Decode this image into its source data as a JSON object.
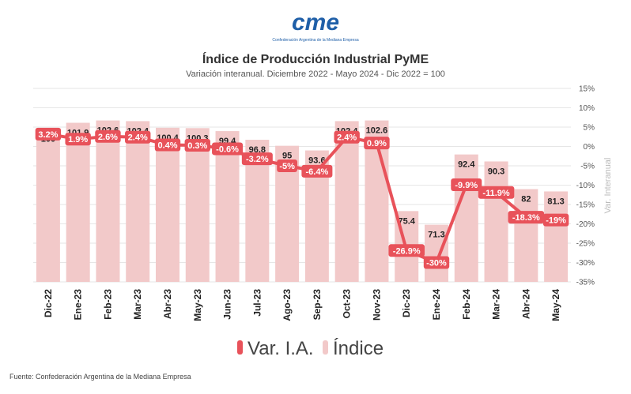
{
  "logo": {
    "text": "cme",
    "caption": "Confederación Argentina de la Mediana Empresa"
  },
  "source": "Fuente: Confederación Argentina de la Mediana Empresa",
  "colors": {
    "bar": "#f2c9c9",
    "line": "#e8525a",
    "logo": "#1f5fa8"
  },
  "chart_data": {
    "type": "bar",
    "title": "Índice de Producción Industrial PyME",
    "subtitle": "Variación interanual. Diciembre 2022 - Mayo 2024 - Dic 2022 = 100",
    "categories": [
      "Dic-22",
      "Ene-23",
      "Feb-23",
      "Mar-23",
      "Abr-23",
      "May-23",
      "Jun-23",
      "Jul-23",
      "Ago-23",
      "Sep-23",
      "Oct-23",
      "Nov-23",
      "Dic-23",
      "Ene-24",
      "Feb-24",
      "Mar-24",
      "Abr-24",
      "May-24"
    ],
    "series": [
      {
        "name": "Índice",
        "type": "bar",
        "values": [
          100,
          101.9,
          102.6,
          102.4,
          100.4,
          100.3,
          99.4,
          96.8,
          95,
          93.6,
          102.4,
          102.6,
          75.4,
          71.3,
          92.4,
          90.3,
          82,
          81.3
        ],
        "labels": [
          "100",
          "101.9",
          "102.6",
          "102.4",
          "100.4",
          "100.3",
          "99.4",
          "96.8",
          "95",
          "93.6",
          "102.4",
          "102.6",
          "75.4",
          "71.3",
          "92.4",
          "90.3",
          "82",
          "81.3"
        ]
      },
      {
        "name": "Var. I.A.",
        "type": "line",
        "axis": "right",
        "values": [
          3.2,
          1.9,
          2.6,
          2.4,
          0.4,
          0.3,
          -0.6,
          -3.2,
          -5,
          -6.4,
          2.4,
          0.9,
          -26.9,
          -30,
          -9.9,
          -11.9,
          -18.3,
          -19
        ],
        "labels": [
          "3.2%",
          "1.9%",
          "2.6%",
          "2.4%",
          "0.4%",
          "0.3%",
          "-0.6%",
          "-3.2%",
          "-5%",
          "-6.4%",
          "2.4%",
          "0.9%",
          "-26.9%",
          "-30%",
          "-9.9%",
          "-11.9%",
          "-18.3%",
          "-19%"
        ]
      }
    ],
    "y2label": "Var. Interanual",
    "y2lim": [
      -35,
      15
    ],
    "y2ticks": [
      "15%",
      "10%",
      "5%",
      "0%",
      "-5%",
      "-10%",
      "-15%",
      "-20%",
      "-25%",
      "-30%",
      "-35%"
    ],
    "grid": true,
    "legend": "bottom-center"
  }
}
